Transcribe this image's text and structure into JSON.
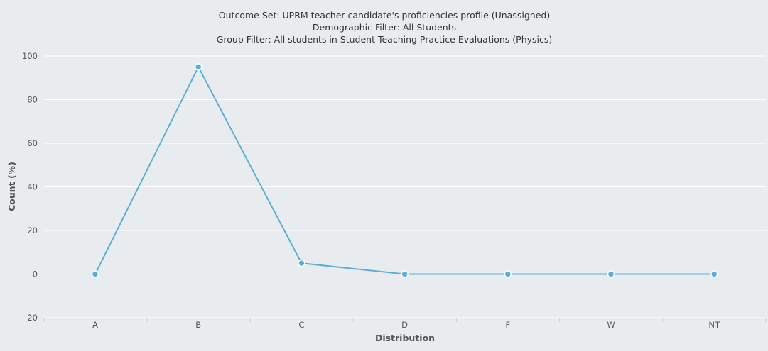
{
  "chart_data": {
    "type": "line",
    "title_lines": [
      "Outcome Set: UPRM teacher candidate's proficiencies profile (Unassigned)",
      "Demographic Filter: All Students",
      "Group Filter: All students in Student Teaching Practice Evaluations (Physics)"
    ],
    "xlabel": "Distribution",
    "ylabel": "Count (%)",
    "categories": [
      "A",
      "B",
      "C",
      "D",
      "F",
      "W",
      "NT"
    ],
    "values": [
      0,
      95,
      5,
      0,
      0,
      0,
      0
    ],
    "ylim": [
      -20,
      100
    ],
    "yticks": [
      -20,
      0,
      20,
      40,
      60,
      80,
      100
    ],
    "ytick_labels": [
      "−20",
      "0",
      "20",
      "40",
      "60",
      "80",
      "100"
    ],
    "grid": true,
    "colors": {
      "series": "#5aafd8",
      "grid": "#ffffff",
      "background": "#e9ecef"
    }
  }
}
